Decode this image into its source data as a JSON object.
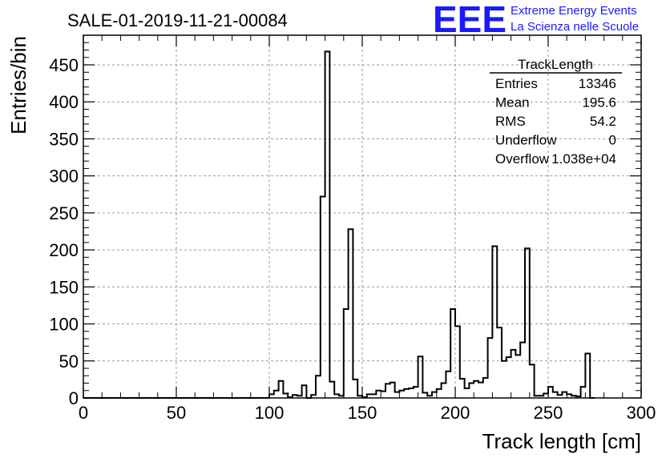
{
  "chart_data": {
    "type": "bar",
    "title": "SALE-01-2019-11-21-00084",
    "xlabel": "Track length [cm]",
    "ylabel": "Entries/bin",
    "xlim": [
      0,
      300
    ],
    "ylim": [
      0,
      490
    ],
    "x_ticks": [
      0,
      50,
      100,
      150,
      200,
      250,
      300
    ],
    "y_ticks": [
      0,
      50,
      100,
      150,
      200,
      250,
      300,
      350,
      400,
      450
    ],
    "grid": true,
    "bin_width": 2.5,
    "bin_start": 0,
    "values": [
      0,
      0,
      0,
      0,
      0,
      0,
      0,
      0,
      0,
      0,
      0,
      0,
      0,
      0,
      0,
      0,
      0,
      0,
      0,
      0,
      0,
      0,
      0,
      0,
      0,
      0,
      0,
      0,
      0,
      0,
      0,
      0,
      0,
      0,
      0,
      0,
      0,
      0,
      0,
      0,
      5,
      10,
      23,
      6,
      1,
      4,
      3,
      17,
      0,
      4,
      30,
      272,
      468,
      22,
      5,
      3,
      120,
      228,
      25,
      3,
      1,
      5,
      5,
      10,
      9,
      19,
      21,
      8,
      10,
      12,
      13,
      15,
      56,
      7,
      3,
      8,
      12,
      20,
      36,
      120,
      97,
      26,
      13,
      20,
      23,
      21,
      27,
      81,
      205,
      95,
      50,
      55,
      65,
      58,
      75,
      202,
      45,
      3,
      3,
      6,
      15,
      8,
      4,
      8,
      5,
      3,
      2,
      15,
      60,
      0
    ],
    "stats": {
      "name": "TrackLength",
      "rows": [
        {
          "label": "Entries",
          "value": "13346"
        },
        {
          "label": "Mean",
          "value": "195.6"
        },
        {
          "label": "RMS",
          "value": "54.2"
        },
        {
          "label": "Underflow",
          "value": "0"
        },
        {
          "label": "Overflow",
          "value": "1.038e+04"
        }
      ]
    }
  },
  "logo": {
    "big": "EEE",
    "line1": "Extreme Energy Events",
    "line2": "La Scienza nelle Scuole"
  },
  "colors": {
    "line": "#000000",
    "grid": "#9a9a9a",
    "logo": "#1a1aff"
  }
}
